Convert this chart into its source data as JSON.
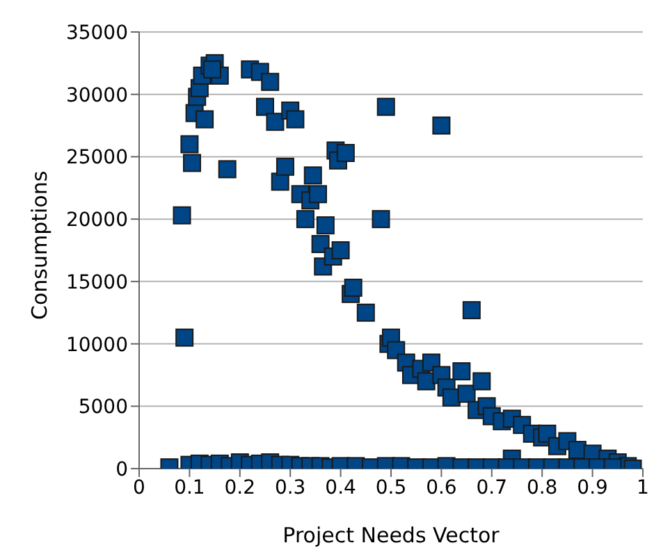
{
  "chart_data": {
    "type": "scatter",
    "xlabel": "Project Needs Vector",
    "ylabel": "Consumptions",
    "xlim": [
      0,
      1
    ],
    "xticks": [
      0,
      0.1,
      0.2,
      0.3,
      0.4,
      0.5,
      0.6,
      0.7,
      0.8,
      0.9,
      1
    ],
    "ylim": [
      0,
      35000
    ],
    "yticks": [
      0,
      5000,
      10000,
      15000,
      20000,
      25000,
      30000,
      35000
    ],
    "grid": "y",
    "marker": "square",
    "legend": false,
    "series": [
      {
        "color": "#004586",
        "x": [
          0.085,
          0.09,
          0.1,
          0.105,
          0.11,
          0.115,
          0.12,
          0.125,
          0.13,
          0.14,
          0.15,
          0.16,
          0.145,
          0.175,
          0.22,
          0.24,
          0.25,
          0.26,
          0.27,
          0.28,
          0.29,
          0.3,
          0.31,
          0.32,
          0.33,
          0.34,
          0.345,
          0.355,
          0.36,
          0.365,
          0.37,
          0.385,
          0.39,
          0.395,
          0.41,
          0.4,
          0.42,
          0.425,
          0.45,
          0.48,
          0.49,
          0.495,
          0.5,
          0.51,
          0.53,
          0.54,
          0.56,
          0.57,
          0.58,
          0.6,
          0.61,
          0.62,
          0.6,
          0.64,
          0.65,
          0.66,
          0.67,
          0.68,
          0.69,
          0.7,
          0.72,
          0.74,
          0.76,
          0.78,
          0.8,
          0.81,
          0.83,
          0.85,
          0.87,
          0.9,
          0.93,
          0.95,
          0.74,
          0.97,
          0.06,
          0.1,
          0.12,
          0.14,
          0.16,
          0.18,
          0.2,
          0.22,
          0.24,
          0.26,
          0.28,
          0.3,
          0.32,
          0.34,
          0.36,
          0.38,
          0.4,
          0.43,
          0.46,
          0.49,
          0.52,
          0.55,
          0.58,
          0.61,
          0.64,
          0.67,
          0.7,
          0.73,
          0.76,
          0.79,
          0.82,
          0.85,
          0.88,
          0.91,
          0.94,
          0.98
        ],
        "values": [
          20300,
          10500,
          26000,
          24500,
          28500,
          29800,
          30500,
          31500,
          28000,
          32300,
          32500,
          31500,
          32000,
          24000,
          32000,
          31800,
          29000,
          31000,
          27800,
          23000,
          24200,
          28700,
          28000,
          22000,
          20000,
          21500,
          23500,
          22000,
          18000,
          16200,
          19500,
          17000,
          25500,
          24700,
          25300,
          17500,
          14000,
          14500,
          12500,
          20000,
          29000,
          10000,
          10500,
          9500,
          8500,
          7500,
          8000,
          7000,
          8500,
          7500,
          6500,
          5700,
          27500,
          7800,
          6000,
          12700,
          4700,
          7000,
          5000,
          4200,
          3800,
          4000,
          3500,
          2800,
          2500,
          2800,
          1800,
          2200,
          1500,
          1200,
          800,
          500,
          800,
          200,
          100,
          300,
          400,
          300,
          400,
          200,
          500,
          300,
          400,
          500,
          300,
          300,
          200,
          200,
          200,
          100,
          200,
          200,
          100,
          200,
          200,
          100,
          100,
          200,
          100,
          100,
          100,
          100,
          100,
          100,
          100,
          100,
          100,
          100,
          100,
          0
        ]
      }
    ]
  }
}
